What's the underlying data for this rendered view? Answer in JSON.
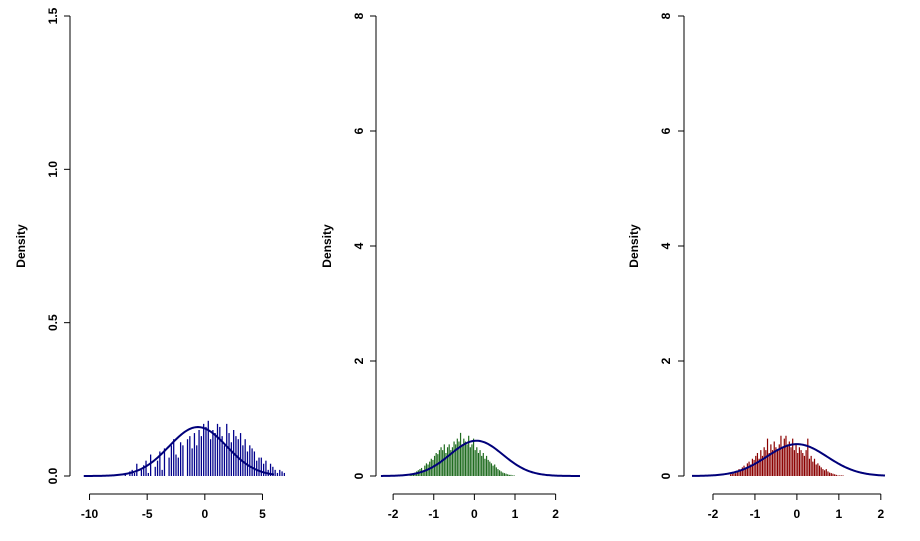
{
  "chart_data": [
    {
      "type": "histogram",
      "ylabel": "Density",
      "ylim": [
        0,
        1.5
      ],
      "xlim": [
        -11,
        6
      ],
      "xticks": [
        -10,
        -5,
        0,
        5
      ],
      "xtick_labels": [
        "-10",
        "-5",
        "0",
        "5"
      ],
      "yticks": [
        0.0,
        0.5,
        1.0,
        1.5
      ],
      "ytick_labels": [
        "0.0",
        "0.5",
        "1.0",
        "1.5"
      ],
      "bar_color": "#00008b",
      "curve_color": "#00007a",
      "bins": {
        "start": -7.0,
        "width": 0.2,
        "values": [
          0.01,
          0.0,
          0.015,
          0.02,
          0.01,
          0.04,
          0.0,
          0.02,
          0.035,
          0.05,
          0.01,
          0.07,
          0.0,
          0.03,
          0.05,
          0.08,
          0.02,
          0.09,
          0.0,
          0.06,
          0.1,
          0.12,
          0.07,
          0.06,
          0.11,
          0.1,
          0.0,
          0.12,
          0.13,
          0.09,
          0.14,
          0.1,
          0.15,
          0.13,
          0.17,
          0.16,
          0.18,
          0.12,
          0.15,
          0.14,
          0.17,
          0.16,
          0.13,
          0.1,
          0.17,
          0.14,
          0.11,
          0.15,
          0.13,
          0.12,
          0.14,
          0.1,
          0.12,
          0.08,
          0.1,
          0.09,
          0.08,
          0.05,
          0.06,
          0.06,
          0.04,
          0.05,
          0.02,
          0.04,
          0.03,
          0.02,
          0.01,
          0.02,
          0.015,
          0.01
        ]
      },
      "curve": {
        "mean": -0.6,
        "sd": 2.5,
        "range": [
          -10.5,
          6
        ]
      }
    },
    {
      "type": "histogram",
      "ylabel": "Density",
      "ylim": [
        0,
        8
      ],
      "xlim": [
        -2.2,
        2.6
      ],
      "xticks": [
        -2,
        -1,
        0,
        1,
        2
      ],
      "xtick_labels": [
        "-2",
        "-1",
        "0",
        "1",
        "2"
      ],
      "yticks": [
        0,
        2,
        4,
        6,
        8
      ],
      "ytick_labels": [
        "0",
        "2",
        "4",
        "6",
        "8"
      ],
      "bar_color": "#1f6b1f",
      "curve_color": "#00007a",
      "bins": {
        "start": -1.6,
        "width": 0.04,
        "values": [
          0.02,
          0.04,
          0.03,
          0.06,
          0.08,
          0.1,
          0.12,
          0.14,
          0.1,
          0.18,
          0.22,
          0.2,
          0.25,
          0.3,
          0.28,
          0.35,
          0.4,
          0.38,
          0.45,
          0.5,
          0.45,
          0.55,
          0.4,
          0.5,
          0.55,
          0.45,
          0.5,
          0.6,
          0.55,
          0.65,
          0.6,
          0.75,
          0.55,
          0.65,
          0.6,
          0.55,
          0.7,
          0.5,
          0.55,
          0.65,
          0.45,
          0.5,
          0.4,
          0.45,
          0.35,
          0.4,
          0.3,
          0.35,
          0.28,
          0.25,
          0.22,
          0.18,
          0.2,
          0.15,
          0.12,
          0.1,
          0.08,
          0.06,
          0.05,
          0.04,
          0.03,
          0.02,
          0.02,
          0.01,
          0.01
        ]
      },
      "curve": {
        "mean": 0.05,
        "sd": 0.65,
        "range": [
          -2.3,
          2.6
        ]
      }
    },
    {
      "type": "histogram",
      "ylabel": "Density",
      "ylim": [
        0,
        8
      ],
      "xlim": [
        -2.5,
        2.1
      ],
      "xticks": [
        -2,
        -1,
        0,
        1,
        2
      ],
      "xtick_labels": [
        "-2",
        "-1",
        "0",
        "1",
        "2"
      ],
      "yticks": [
        0,
        2,
        4,
        6,
        8
      ],
      "ytick_labels": [
        "0",
        "2",
        "4",
        "6",
        "8"
      ],
      "bar_color": "#8b0000",
      "curve_color": "#00007a",
      "bins": {
        "start": -1.6,
        "width": 0.04,
        "values": [
          0.03,
          0.04,
          0.06,
          0.05,
          0.08,
          0.12,
          0.1,
          0.15,
          0.18,
          0.15,
          0.22,
          0.25,
          0.2,
          0.3,
          0.28,
          0.35,
          0.4,
          0.3,
          0.45,
          0.35,
          0.5,
          0.45,
          0.65,
          0.4,
          0.55,
          0.45,
          0.6,
          0.5,
          0.45,
          0.55,
          0.7,
          0.5,
          0.65,
          0.7,
          0.55,
          0.6,
          0.5,
          0.65,
          0.45,
          0.55,
          0.4,
          0.5,
          0.45,
          0.4,
          0.35,
          0.45,
          0.65,
          0.3,
          0.35,
          0.25,
          0.3,
          0.2,
          0.22,
          0.18,
          0.15,
          0.12,
          0.1,
          0.12,
          0.08,
          0.06,
          0.05,
          0.04,
          0.03,
          0.02,
          0.01,
          0.01,
          0.01,
          0.01
        ]
      },
      "curve": {
        "mean": 0.0,
        "sd": 0.72,
        "range": [
          -2.5,
          2.1
        ]
      }
    }
  ]
}
